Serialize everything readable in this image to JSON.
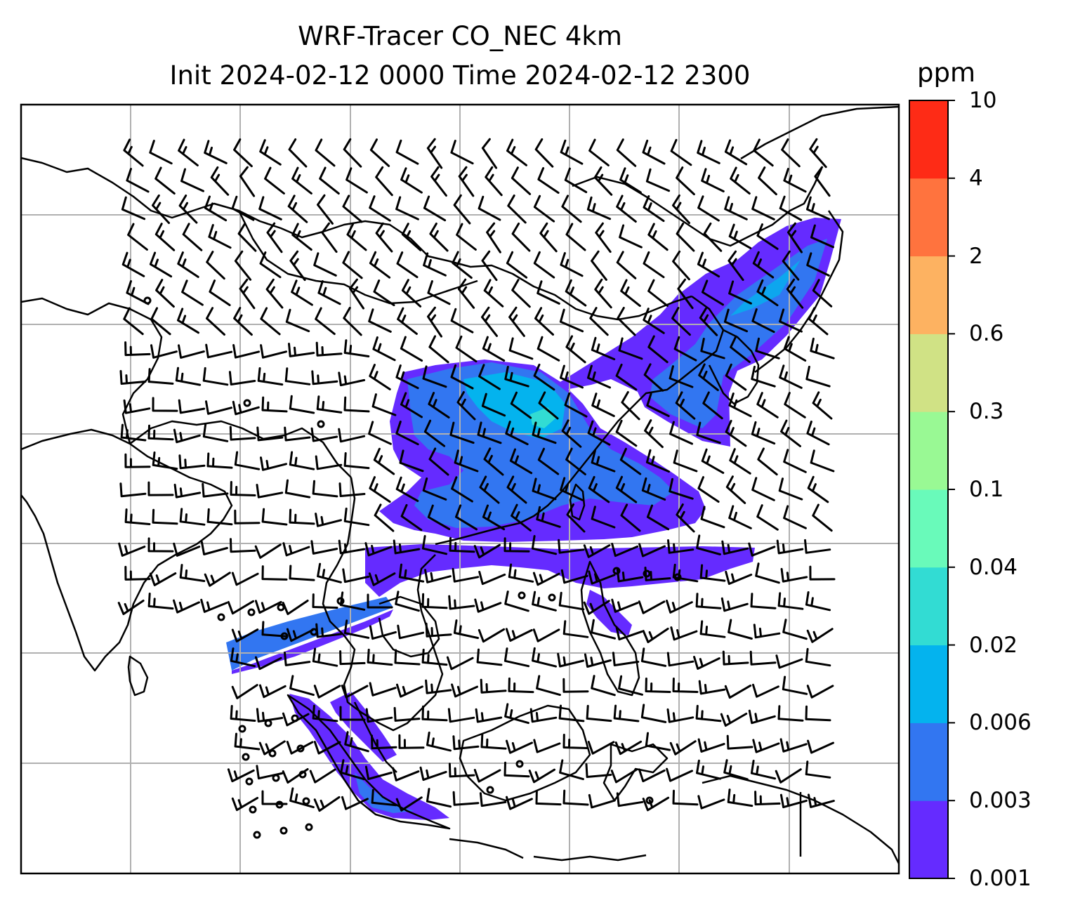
{
  "title": {
    "line1": "WRF-Tracer CO_NEC 4km",
    "line2": "Init 2024-02-12 0000 Time 2024-02-12 2300"
  },
  "colorbar": {
    "units": "ppm",
    "levels": [
      "0.001",
      "0.003",
      "0.006",
      "0.02",
      "0.04",
      "0.1",
      "0.3",
      "0.6",
      "2",
      "4",
      "10"
    ],
    "colors": [
      "#652bff",
      "#3276f1",
      "#04b3ee",
      "#32dcd3",
      "#69faba",
      "#99f994",
      "#d0e285",
      "#fdb261",
      "#ff733e",
      "#fe2b16"
    ]
  },
  "map": {
    "gridlines": true,
    "gridline_color": "#b0b0b0",
    "coastline_color": "#000000",
    "barb_color": "#000000"
  }
}
